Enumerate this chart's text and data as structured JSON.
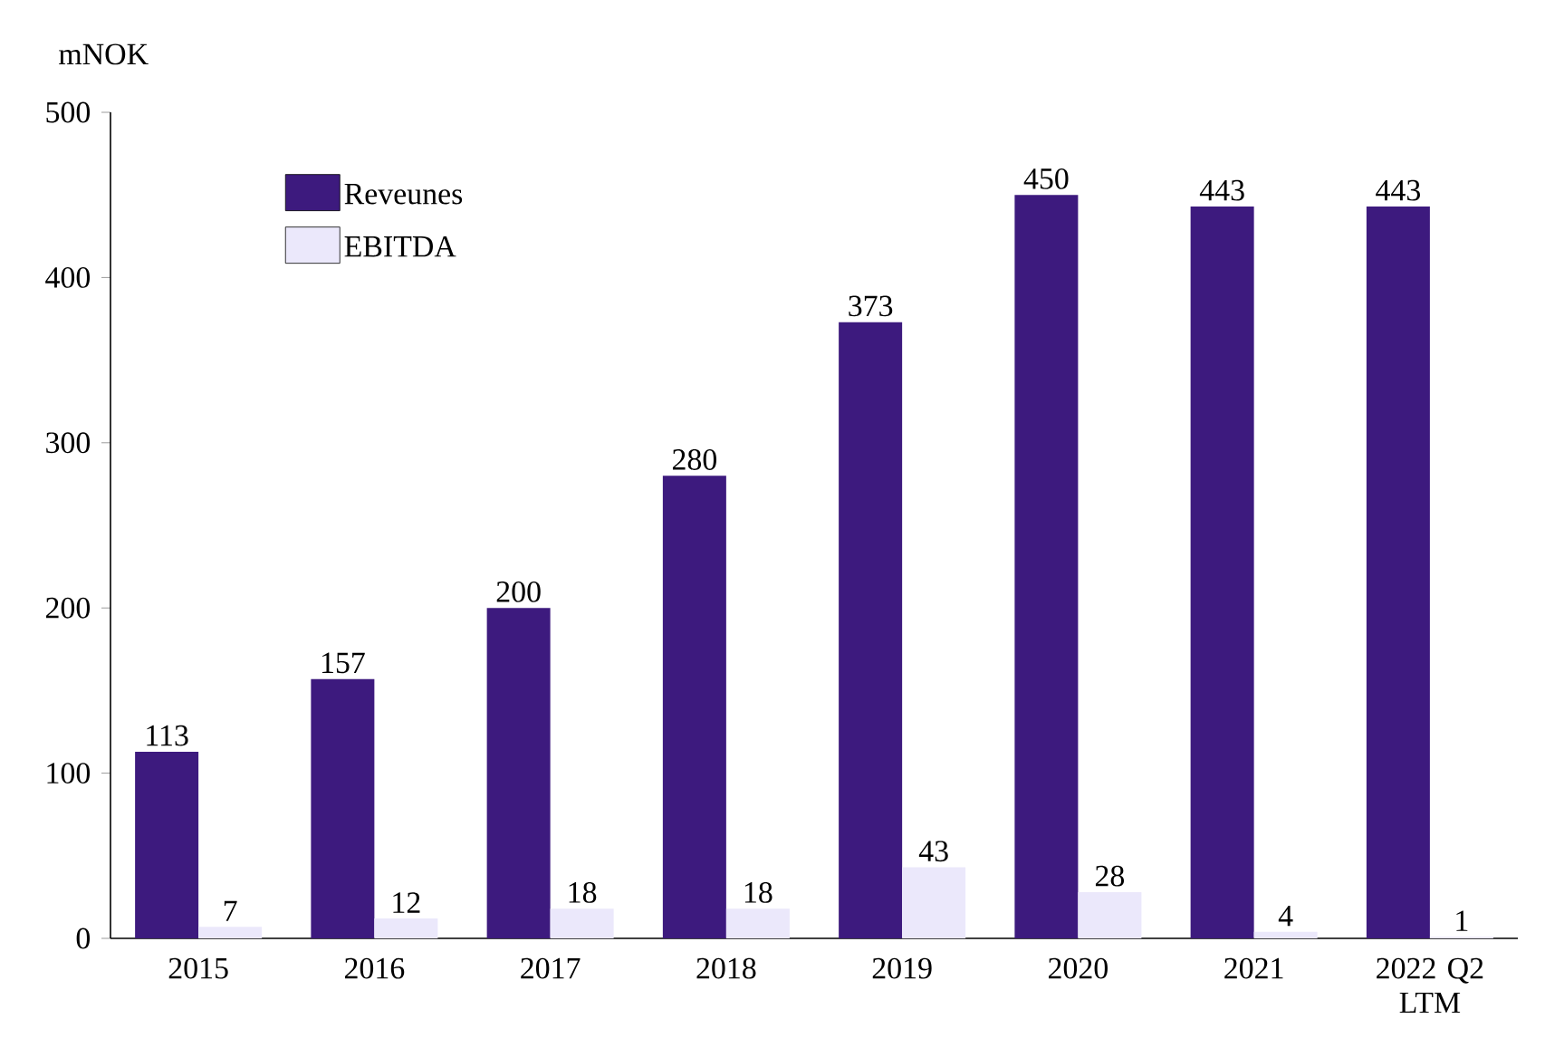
{
  "chart_data": {
    "type": "bar",
    "ylabel": "mNOK",
    "categories": [
      "2015",
      "2016",
      "2017",
      "2018",
      "2019",
      "2020",
      "2021",
      "2022 Q2 LTM"
    ],
    "series": [
      {
        "name": "Reveunes",
        "color": "#3d1a7e",
        "values": [
          113,
          157,
          200,
          280,
          373,
          450,
          443,
          443
        ]
      },
      {
        "name": "EBITDA",
        "color": "#ebe8fb",
        "values": [
          7,
          12,
          18,
          18,
          43,
          28,
          4,
          1
        ]
      }
    ],
    "ylim": [
      0,
      500
    ],
    "yticks": [
      0,
      100,
      200,
      300,
      400,
      500
    ],
    "data_labels": true,
    "legend": "top left",
    "grid": false
  }
}
